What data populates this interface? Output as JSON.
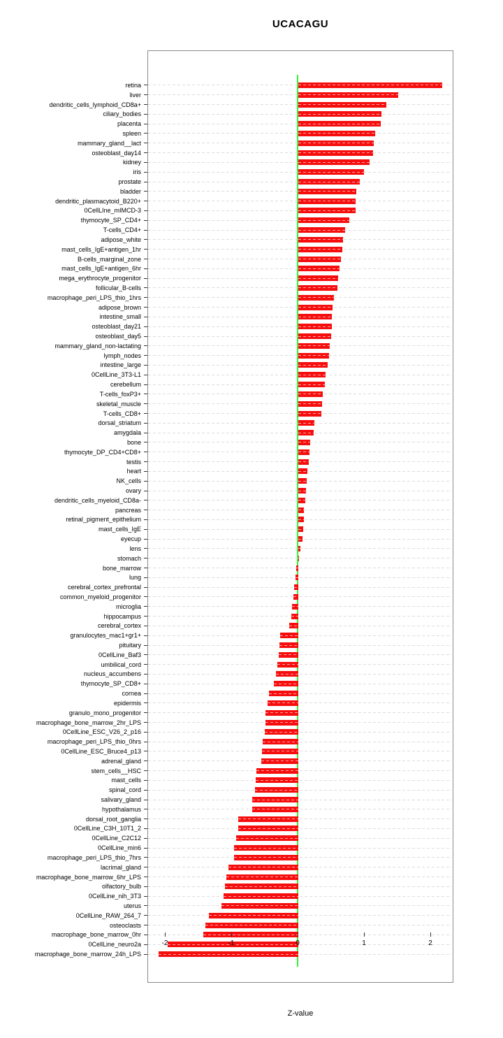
{
  "chart_data": {
    "type": "bar",
    "orientation": "horizontal",
    "title": "UCACAGU",
    "xlabel": "Z-value",
    "ylabel": "",
    "xlim": [
      -2.263,
      2.347
    ],
    "x_ticks": [
      -2,
      -1,
      0,
      1,
      2
    ],
    "grid": "horizontal-dotted",
    "zero_reference_line": 0,
    "categories": [
      "retina",
      "liver",
      "dendritic_cells_lymphoid_CD8a+",
      "ciliary_bodies",
      "placenta",
      "spleen",
      "mammary_gland__lact",
      "osteoblast_day14",
      "kidney",
      "iris",
      "prostate",
      "bladder",
      "dendritic_plasmacytoid_B220+",
      "0CellLIne_mIMCD-3",
      "thymocyte_SP_CD4+",
      "T-cells_CD4+",
      "adipose_white",
      "mast_cells_IgE+antigen_1hr",
      "B-cells_marginal_zone",
      "mast_cells_IgE+antigen_6hr",
      "mega_erythrocyte_progenitor",
      "follicular_B-cells",
      "macrophage_peri_LPS_thio_1hrs",
      "adipose_brown",
      "intestine_small",
      "osteoblast_day21",
      "osteoblast_day5",
      "mammary_gland_non-lactating",
      "lymph_nodes",
      "intestine_large",
      "0CellLine_3T3-L1",
      "cerebellum",
      "T-cells_foxP3+",
      "skeletal_muscle",
      "T-cells_CD8+",
      "dorsal_striatum",
      "amygdala",
      "bone",
      "thymocyte_DP_CD4+CD8+",
      "testis",
      "heart",
      "NK_cells",
      "ovary",
      "dendritic_cells_myeloid_CD8a-",
      "pancreas",
      "retinal_pigment_epithelium",
      "mast_cells_IgE",
      "eyecup",
      "lens",
      "stomach",
      "bone_marrow",
      "lung",
      "cerebral_cortex_prefrontal",
      "common_myeloid_progenitor",
      "microglia",
      "hippocampus",
      "cerebral_cortex",
      "granulocytes_mac1+gr1+",
      "pituitary",
      "0CellLine_Baf3",
      "umbilical_cord",
      "nucleus_accumbens",
      "thymocyte_SP_CD8+",
      "cornea",
      "epidermis",
      "granulo_mono_progenitor",
      "macrophage_bone_marrow_2hr_LPS",
      "0CellLine_ESC_V26_2_p16",
      "macrophage_peri_LPS_thio_0hrs",
      "0CellLine_ESC_Bruce4_p13",
      "adrenal_gland",
      "stem_cells__HSC",
      "mast_cells",
      "spinal_cord",
      "salivary_gland",
      "hypothalamus",
      "dorsal_root_ganglia",
      "0CellLine_C3H_10T1_2",
      "0CellLine_C2C12",
      "0CellLine_min6",
      "macrophage_peri_LPS_thio_7hrs",
      "lacrimal_gland",
      "macrophage_bone_marrow_6hr_LPS",
      "olfactory_bulb",
      "0CellLine_nih_3T3",
      "uterus",
      "0CellLine_RAW_264_7",
      "osteoclasts",
      "macrophage_bone_marrow_0hr",
      "0CellLine_neuro2a",
      "macrophage_bone_marrow_24h_LPS"
    ],
    "values": [
      2.17,
      1.5,
      1.33,
      1.25,
      1.24,
      1.16,
      1.14,
      1.13,
      1.07,
      0.99,
      0.93,
      0.87,
      0.86,
      0.86,
      0.77,
      0.71,
      0.67,
      0.66,
      0.64,
      0.62,
      0.6,
      0.59,
      0.54,
      0.52,
      0.51,
      0.5,
      0.49,
      0.47,
      0.46,
      0.44,
      0.41,
      0.4,
      0.37,
      0.36,
      0.35,
      0.24,
      0.23,
      0.18,
      0.17,
      0.16,
      0.14,
      0.13,
      0.12,
      0.1,
      0.08,
      0.08,
      0.07,
      0.06,
      0.03,
      0.01,
      -0.03,
      -0.04,
      -0.06,
      -0.07,
      -0.09,
      -0.11,
      -0.14,
      -0.27,
      -0.28,
      -0.3,
      -0.32,
      -0.34,
      -0.37,
      -0.44,
      -0.46,
      -0.5,
      -0.5,
      -0.51,
      -0.54,
      -0.55,
      -0.56,
      -0.63,
      -0.64,
      -0.65,
      -0.69,
      -0.69,
      -0.9,
      -0.91,
      -0.94,
      -0.97,
      -0.97,
      -1.05,
      -1.08,
      -1.1,
      -1.13,
      -1.16,
      -1.35,
      -1.4,
      -1.43,
      -1.97,
      -2.1
    ],
    "colors": {
      "bar": "#f60d0d",
      "bar_dash_overlay": "#ffa8a8",
      "gridline": "#dcdcdc",
      "zero_line": "#35f035",
      "axis_box": "#8a8a8a",
      "text": "#000000"
    }
  }
}
